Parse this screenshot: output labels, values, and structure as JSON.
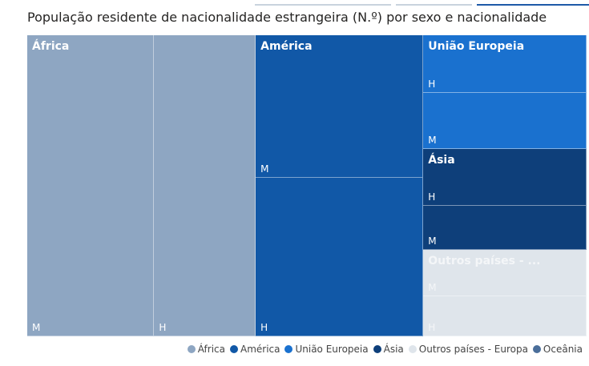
{
  "title": "População residente de nacionalidade estrangeira (N.º) por sexo e nacionalidade",
  "chart_data": {
    "type": "treemap",
    "groups": [
      {
        "name": "África",
        "color": "#8ea6c2",
        "label_color": "#ffffff",
        "children": [
          {
            "label": "M",
            "value": 0.25
          },
          {
            "label": "H",
            "value": 0.2
          }
        ]
      },
      {
        "name": "América",
        "color": "#1158a7",
        "label_color": "#ffffff",
        "children": [
          {
            "label": "M",
            "value": 0.156
          },
          {
            "label": "H",
            "value": 0.174
          }
        ]
      },
      {
        "name": "União Europeia",
        "color": "#1a71cf",
        "label_color": "#ffffff",
        "children": [
          {
            "label": "H",
            "value": 0.0615
          },
          {
            "label": "M",
            "value": 0.0595
          }
        ]
      },
      {
        "name": "Ásia",
        "color": "#0e3f7a",
        "label_color": "#ffffff",
        "children": [
          {
            "label": "H",
            "value": 0.0615
          },
          {
            "label": "M",
            "value": 0.047
          }
        ]
      },
      {
        "name": "Outros países - ...",
        "color": "#dfe5eb",
        "label_color": "#f4f6f8",
        "children": [
          {
            "label": "M",
            "value": 0.0495
          },
          {
            "label": "H",
            "value": 0.0425
          }
        ]
      }
    ]
  },
  "legend": [
    {
      "label": "África",
      "color": "#8ea6c2"
    },
    {
      "label": "América",
      "color": "#1158a7"
    },
    {
      "label": "União Europeia",
      "color": "#1a71cf"
    },
    {
      "label": "Ásia",
      "color": "#0e3f7a"
    },
    {
      "label": "Outros países - Europa",
      "color": "#dfe5eb"
    },
    {
      "label": "Oceânia",
      "color": "#4a6e9a"
    }
  ]
}
